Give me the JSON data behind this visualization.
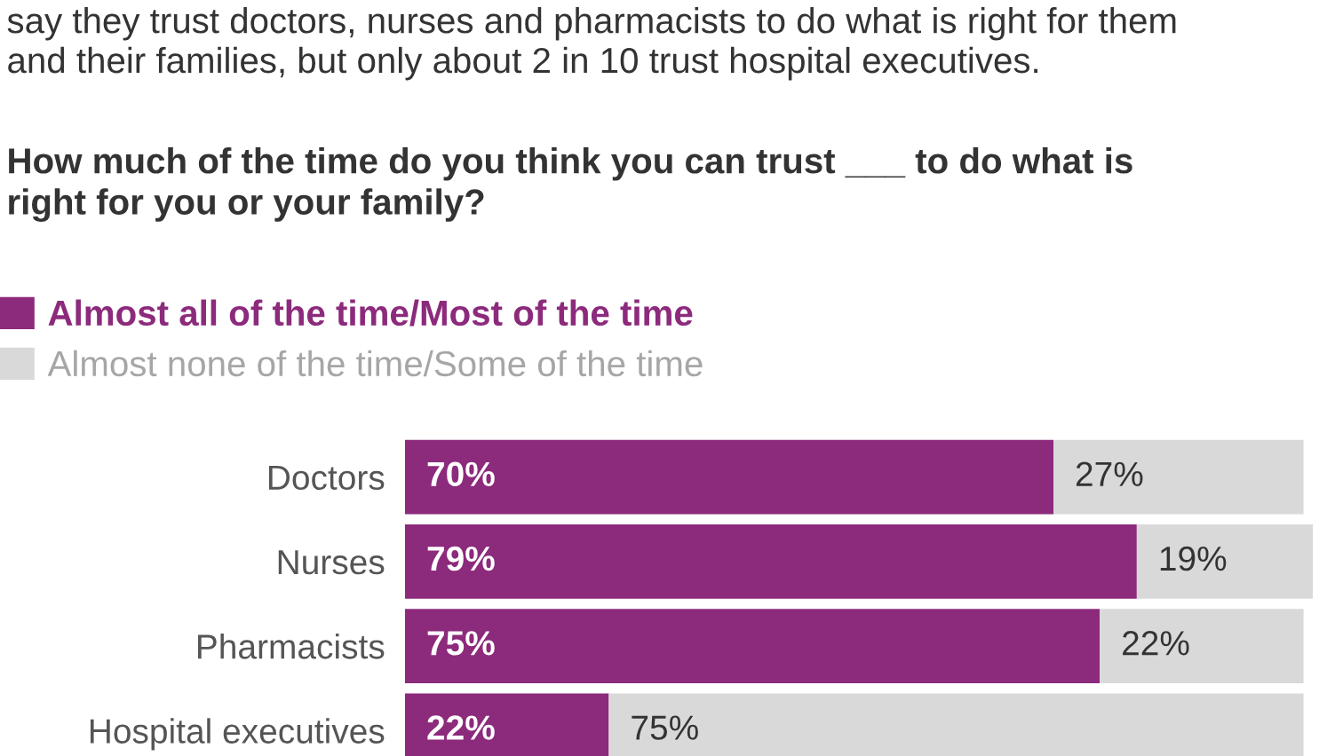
{
  "chart_data": {
    "type": "bar",
    "orientation": "horizontal",
    "stacked": true,
    "subtitle": "say they trust doctors, nurses and pharmacists to do what is right for them\nand their families, but only about 2 in 10 trust hospital executives.",
    "title": "How much of the time do you think you can trust ___ to do what is\nright for you or your family?",
    "categories": [
      "Doctors",
      "Nurses",
      "Pharmacists",
      "Hospital executives"
    ],
    "series": [
      {
        "name": "Almost all of the time/Most of the time",
        "color": "#8c2a7c",
        "values": [
          70,
          79,
          75,
          22
        ],
        "value_labels": [
          "70%",
          "79%",
          "75%",
          "22%"
        ]
      },
      {
        "name": "Almost none of the time/Some of the time",
        "color": "#d9d9d9",
        "values": [
          27,
          19,
          22,
          75
        ],
        "value_labels": [
          "27%",
          "19%",
          "22%",
          "75%"
        ]
      }
    ],
    "legend": "top left"
  }
}
